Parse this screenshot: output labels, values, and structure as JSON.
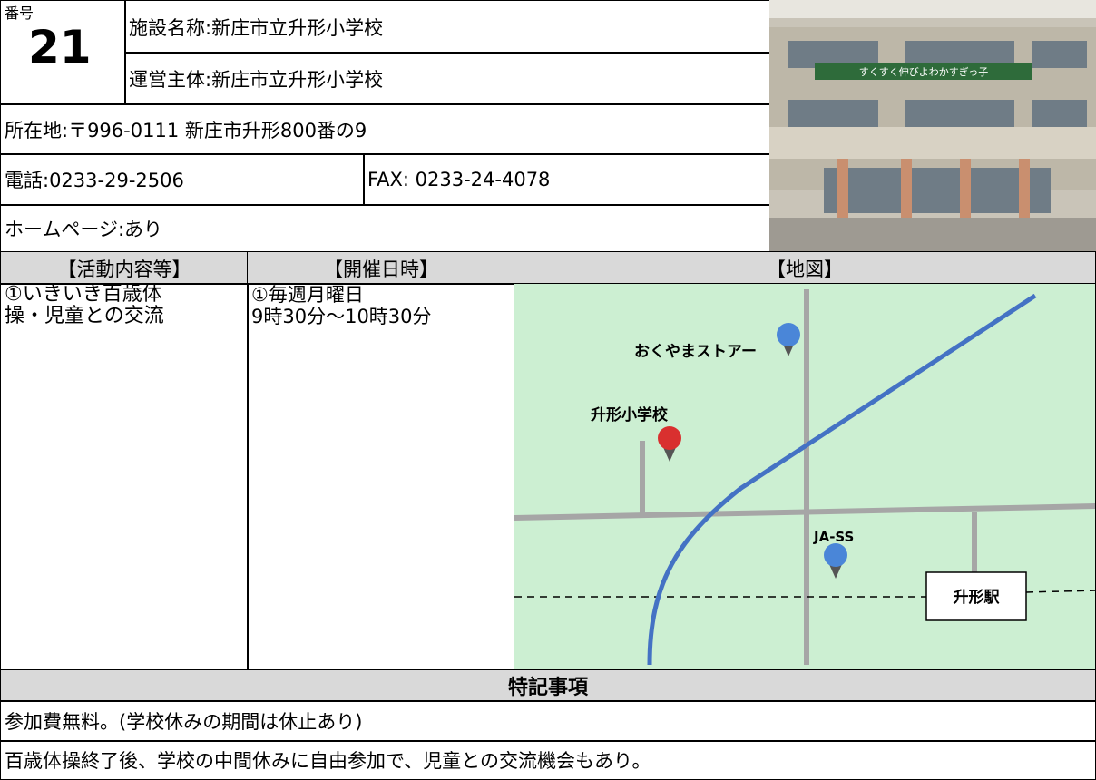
{
  "header": {
    "number_label": "番号",
    "number": "21",
    "facility_name": "施設名称:新庄市立升形小学校",
    "operator": "運営主体:新庄市立升形小学校",
    "address": "所在地:〒996-0111 新庄市升形800番の9",
    "phone": "電話:0233-29-2506",
    "fax": "FAX: 0233-24-4078",
    "homepage": "ホームページ:あり"
  },
  "photo": {
    "banner_text": "すくすく伸びよわかすぎっ子"
  },
  "table": {
    "headers": [
      "【活動内容等】",
      "【開催日時】",
      "【地図】"
    ],
    "activity": [
      "①いきいき百歳体",
      "操・児童との交流"
    ],
    "schedule": [
      "①毎週月曜日",
      "9時30分～10時30分"
    ]
  },
  "map": {
    "labels": {
      "store": "おくやまストアー",
      "school": "升形小学校",
      "ja": "JA-SS",
      "station": "升形駅"
    }
  },
  "notes": {
    "title": "特記事項",
    "lines": [
      "参加費無料。(学校休みの期間は休止あり)",
      "百歳体操終了後、学校の中間休みに自由参加で、児童との交流機会もあり。"
    ]
  }
}
